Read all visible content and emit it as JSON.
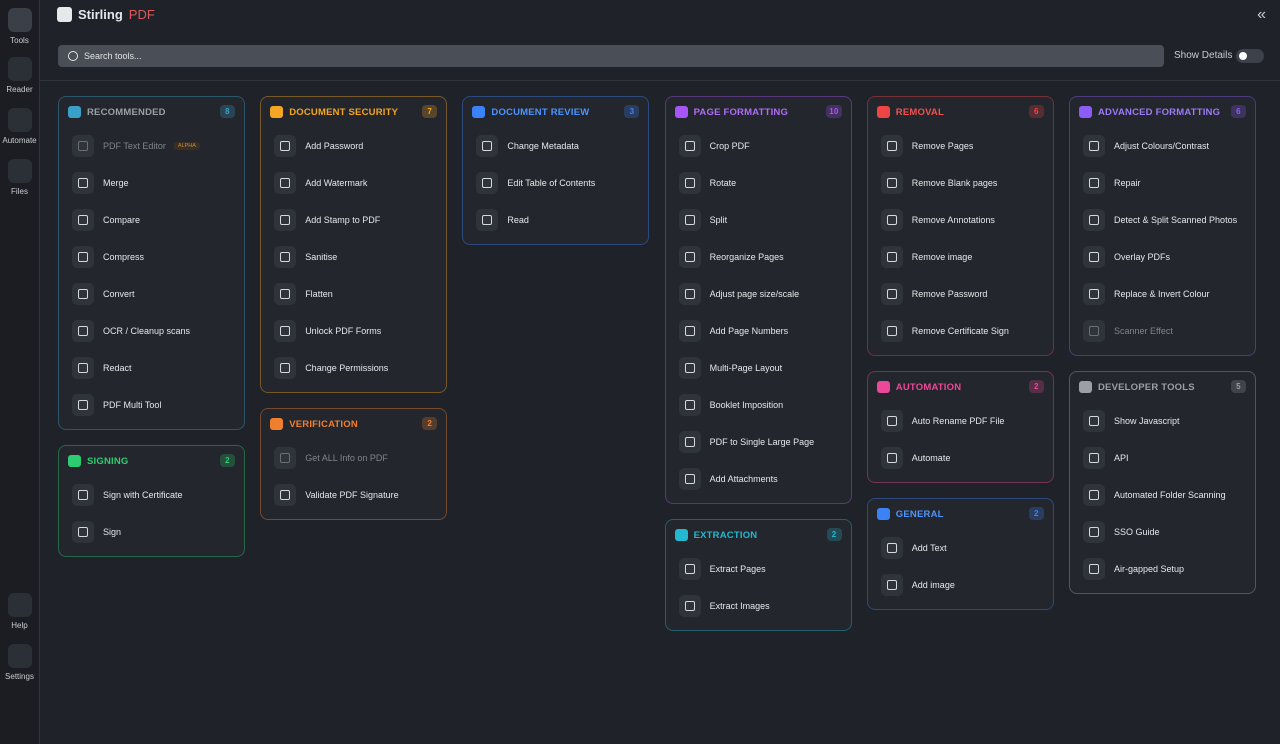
{
  "sidebar": {
    "items": [
      {
        "label": "Tools",
        "active": true
      },
      {
        "label": "Reader"
      },
      {
        "label": "Automate"
      },
      {
        "label": "Files"
      }
    ],
    "bottom": [
      {
        "label": "Help"
      },
      {
        "label": "Settings"
      }
    ]
  },
  "header": {
    "brand_name": "Stirling",
    "brand_suffix": "PDF",
    "search_placeholder": "Search tools...",
    "show_details": "Show Details"
  },
  "columns": [
    [
      {
        "title": "RECOMMENDED",
        "count": 8,
        "color": "#3aa0c8",
        "title_color": "#9aa0a6",
        "items": [
          {
            "label": "PDF Text Editor",
            "disabled": true,
            "badge": "ALPHA"
          },
          {
            "label": "Merge"
          },
          {
            "label": "Compare"
          },
          {
            "label": "Compress"
          },
          {
            "label": "Convert"
          },
          {
            "label": "OCR / Cleanup scans"
          },
          {
            "label": "Redact"
          },
          {
            "label": "PDF Multi Tool"
          }
        ]
      },
      {
        "title": "SIGNING",
        "count": 2,
        "color": "#2ecc71",
        "title_color": "#2ecc71",
        "items": [
          {
            "label": "Sign with Certificate"
          },
          {
            "label": "Sign"
          }
        ]
      }
    ],
    [
      {
        "title": "DOCUMENT SECURITY",
        "count": 7,
        "color": "#f5a623",
        "title_color": "#f5a623",
        "items": [
          {
            "label": "Add Password"
          },
          {
            "label": "Add Watermark"
          },
          {
            "label": "Add Stamp to PDF"
          },
          {
            "label": "Sanitise"
          },
          {
            "label": "Flatten"
          },
          {
            "label": "Unlock PDF Forms"
          },
          {
            "label": "Change Permissions"
          }
        ]
      },
      {
        "title": "VERIFICATION",
        "count": 2,
        "color": "#f08030",
        "title_color": "#f08030",
        "items": [
          {
            "label": "Get ALL Info on PDF",
            "disabled": true
          },
          {
            "label": "Validate PDF Signature"
          }
        ]
      }
    ],
    [
      {
        "title": "DOCUMENT REVIEW",
        "count": 3,
        "color": "#3b82f6",
        "title_color": "#4d94ff",
        "items": [
          {
            "label": "Change Metadata"
          },
          {
            "label": "Edit Table of Contents"
          },
          {
            "label": "Read"
          }
        ]
      }
    ],
    [
      {
        "title": "PAGE FORMATTING",
        "count": 10,
        "color": "#a855f7",
        "title_color": "#b06cf7",
        "items": [
          {
            "label": "Crop PDF"
          },
          {
            "label": "Rotate"
          },
          {
            "label": "Split"
          },
          {
            "label": "Reorganize Pages"
          },
          {
            "label": "Adjust page size/scale"
          },
          {
            "label": "Add Page Numbers"
          },
          {
            "label": "Multi-Page Layout"
          },
          {
            "label": "Booklet Imposition"
          },
          {
            "label": "PDF to Single Large Page"
          },
          {
            "label": "Add Attachments"
          }
        ]
      },
      {
        "title": "EXTRACTION",
        "count": 2,
        "color": "#22b8cf",
        "title_color": "#22b8cf",
        "items": [
          {
            "label": "Extract Pages"
          },
          {
            "label": "Extract Images"
          }
        ]
      }
    ],
    [
      {
        "title": "REMOVAL",
        "count": 6,
        "color": "#ef4444",
        "title_color": "#f05252",
        "items": [
          {
            "label": "Remove Pages"
          },
          {
            "label": "Remove Blank pages"
          },
          {
            "label": "Remove Annotations"
          },
          {
            "label": "Remove image"
          },
          {
            "label": "Remove Password"
          },
          {
            "label": "Remove Certificate Sign"
          }
        ]
      },
      {
        "title": "AUTOMATION",
        "count": 2,
        "color": "#ec4899",
        "title_color": "#ec4899",
        "items": [
          {
            "label": "Auto Rename PDF File"
          },
          {
            "label": "Automate"
          }
        ]
      },
      {
        "title": "GENERAL",
        "count": 2,
        "color": "#3b82f6",
        "title_color": "#4d94ff",
        "items": [
          {
            "label": "Add Text"
          },
          {
            "label": "Add image"
          }
        ]
      }
    ],
    [
      {
        "title": "ADVANCED FORMATTING",
        "count": 6,
        "color": "#8b5cf6",
        "title_color": "#9d7af7",
        "items": [
          {
            "label": "Adjust Colours/Contrast"
          },
          {
            "label": "Repair"
          },
          {
            "label": "Detect & Split Scanned Photos"
          },
          {
            "label": "Overlay PDFs"
          },
          {
            "label": "Replace & Invert Colour"
          },
          {
            "label": "Scanner Effect",
            "disabled": true
          }
        ]
      },
      {
        "title": "DEVELOPER TOOLS",
        "count": 5,
        "color": "#9aa0a6",
        "title_color": "#9aa0a6",
        "items": [
          {
            "label": "Show Javascript"
          },
          {
            "label": "API"
          },
          {
            "label": "Automated Folder Scanning"
          },
          {
            "label": "SSO Guide"
          },
          {
            "label": "Air-gapped Setup"
          }
        ]
      }
    ]
  ]
}
